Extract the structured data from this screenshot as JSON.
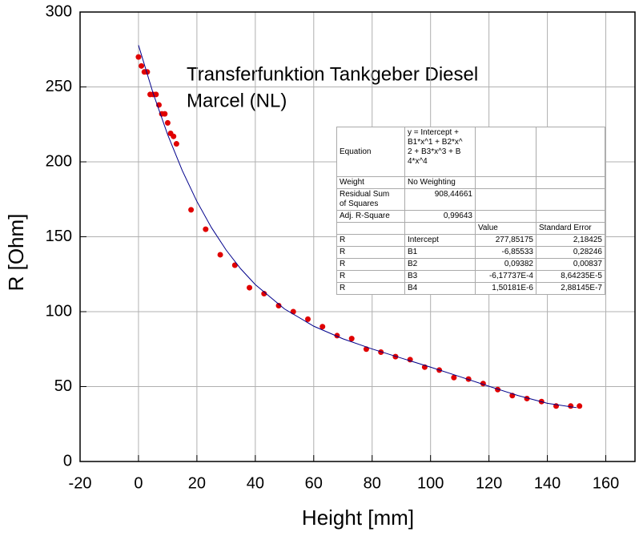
{
  "chart_data": {
    "type": "scatter",
    "title": "Transferfunktion Tankgeber Diesel",
    "subtitle": "Marcel (NL)",
    "x_label": "Height [mm]",
    "y_label": "R [Ohm]",
    "xlim": [
      -20,
      170
    ],
    "ylim": [
      0,
      300
    ],
    "xticks": [
      -20,
      0,
      20,
      40,
      60,
      80,
      100,
      120,
      140,
      160
    ],
    "yticks": [
      0,
      50,
      100,
      150,
      200,
      250,
      300
    ],
    "grid": true,
    "series": [
      {
        "color": "#e00000",
        "mode": "markers",
        "x": [
          0,
          1,
          2,
          3,
          4,
          5,
          6,
          7,
          8,
          9,
          10,
          11,
          12,
          13,
          18,
          23,
          28,
          33,
          38,
          43,
          48,
          53,
          58,
          63,
          68,
          73,
          78,
          83,
          88,
          93,
          98,
          103,
          108,
          113,
          118,
          123,
          128,
          133,
          138,
          143,
          148,
          151
        ],
        "values": [
          270,
          264,
          260,
          260,
          245,
          245,
          245,
          238,
          232,
          232,
          226,
          219,
          217,
          212,
          168,
          155,
          138,
          131,
          116,
          112,
          104,
          100,
          95,
          90,
          84,
          82,
          75,
          73,
          70,
          68,
          63,
          61,
          56,
          55,
          52,
          48,
          44,
          42,
          40,
          37,
          37,
          37
        ]
      },
      {
        "color": "#00008b",
        "mode": "line",
        "x": [
          0,
          5,
          10,
          15,
          20,
          25,
          30,
          35,
          40,
          50,
          60,
          70,
          80,
          90,
          100,
          110,
          120,
          130,
          140,
          150
        ],
        "values": [
          277.85,
          245.84,
          218.08,
          194.13,
          173.57,
          156.05,
          141.17,
          128.6,
          118.05,
          101.8,
          90.31,
          81.88,
          75.1,
          69.01,
          62.96,
          56.65,
          50.19,
          43.98,
          38.83,
          35.93
        ]
      }
    ],
    "fit_table": {
      "rows": [
        [
          "Equation",
          "y = Intercept +\nB1*x^1 + B2*x^\n2 + B3*x^3 + B\n4*x^4"
        ],
        [
          "Weight",
          "No Weighting"
        ],
        [
          "Residual Sum\nof Squares",
          "908,44661"
        ],
        [
          "Adj. R-Square",
          "0,99643"
        ]
      ],
      "columns": [
        "Value",
        "Standard Error"
      ],
      "params": [
        [
          "R",
          "Intercept",
          "277,85175",
          "2,18425"
        ],
        [
          "R",
          "B1",
          "-6,85533",
          "0,28246"
        ],
        [
          "R",
          "B2",
          "0,09382",
          "0,00837"
        ],
        [
          "R",
          "B3",
          "-6,17737E-4",
          "8,64235E-5"
        ],
        [
          "R",
          "B4",
          "1,50181E-6",
          "2,88145E-7"
        ]
      ]
    }
  }
}
